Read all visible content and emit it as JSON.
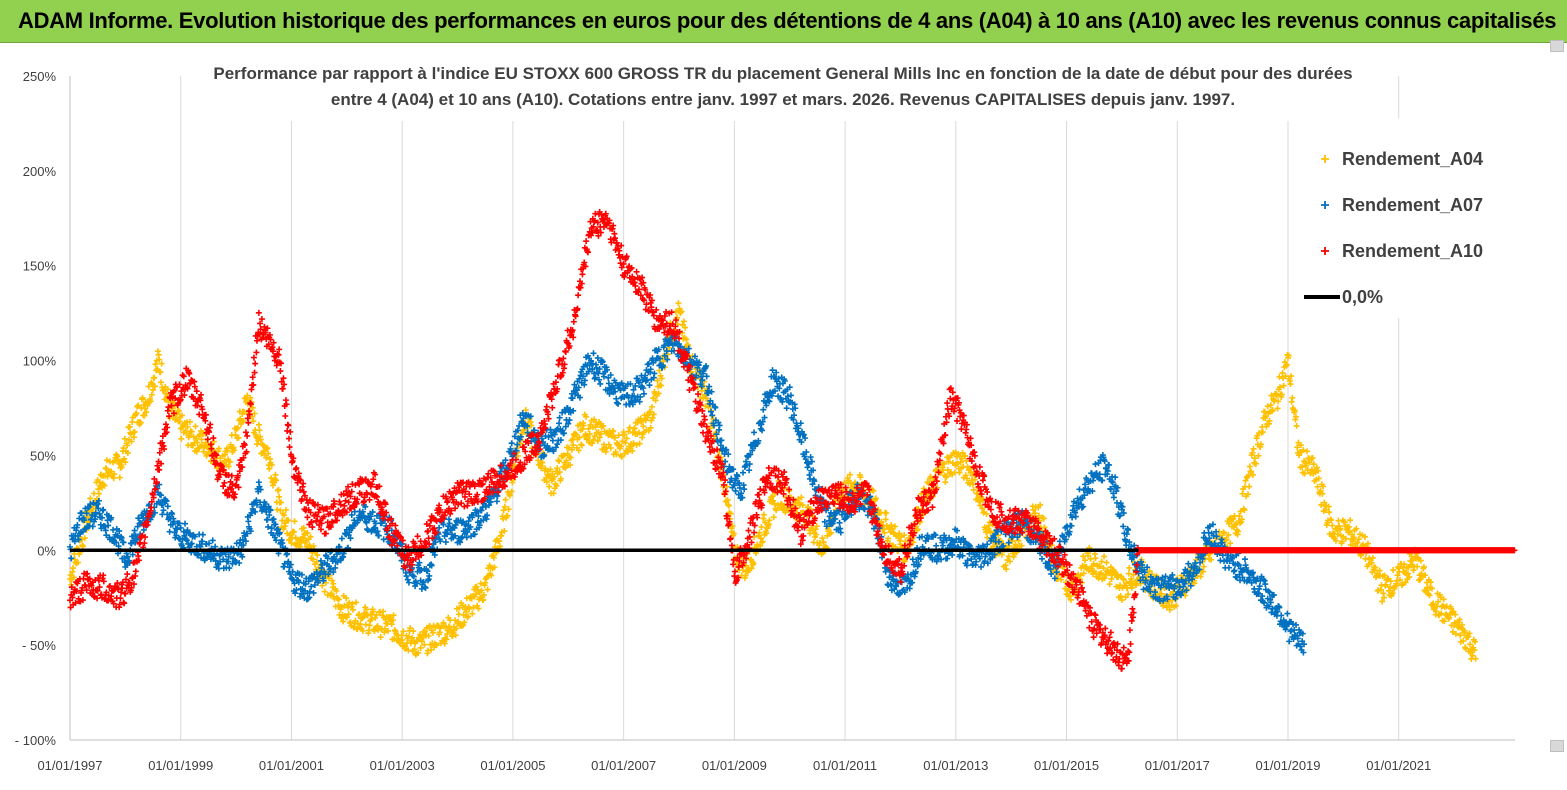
{
  "banner": {
    "title": "ADAM Informe. Evolution historique des performances en euros pour des détentions de 4 ans (A04) à 10 ans (A10) avec les revenus connus capitalisés",
    "background_color": "#92d050"
  },
  "chart_data": {
    "type": "scatter",
    "title_lines": [
      "Performance par rapport à l'indice EU STOXX 600 GROSS TR  du placement General Mills Inc en fonction de la date de début pour des durées",
      "entre 4 (A04) et 10 ans (A10). Cotations entre janv. 1997 et mars. 2026. Revenus CAPITALISES depuis janv. 1997."
    ],
    "xlabel": "",
    "ylabel": "",
    "y_ticks": [
      "250%",
      "200%",
      "150%",
      "100%",
      "50%",
      "0%",
      "- 50%",
      "- 100%"
    ],
    "y_tick_values": [
      250,
      200,
      150,
      100,
      50,
      0,
      -50,
      -100
    ],
    "ylim": [
      -100,
      250
    ],
    "x_ticks": [
      "01/01/1997",
      "01/01/1999",
      "01/01/2001",
      "01/01/2003",
      "01/01/2005",
      "01/01/2007",
      "01/01/2009",
      "01/01/2011",
      "01/01/2013",
      "01/01/2015",
      "01/01/2017",
      "01/01/2019",
      "01/01/2021"
    ],
    "x_tick_years": [
      1997,
      1999,
      2001,
      2003,
      2005,
      2007,
      2009,
      2011,
      2013,
      2015,
      2017,
      2019,
      2021
    ],
    "xlim": [
      1997.0,
      2023.1
    ],
    "grid": "vertical",
    "legend_position": "top-right",
    "series": [
      {
        "name": "Rendement_A04",
        "color": "#ffc000",
        "marker": "plus",
        "points": [
          [
            1997.0,
            -15
          ],
          [
            1997.3,
            15
          ],
          [
            1997.6,
            40
          ],
          [
            1997.9,
            45
          ],
          [
            1998.2,
            70
          ],
          [
            1998.4,
            80
          ],
          [
            1998.6,
            100
          ],
          [
            1998.8,
            75
          ],
          [
            1999.0,
            65
          ],
          [
            1999.2,
            60
          ],
          [
            1999.5,
            55
          ],
          [
            1999.8,
            45
          ],
          [
            2000.0,
            60
          ],
          [
            2000.2,
            80
          ],
          [
            2000.4,
            60
          ],
          [
            2000.6,
            50
          ],
          [
            2000.8,
            20
          ],
          [
            2001.0,
            10
          ],
          [
            2001.3,
            5
          ],
          [
            2001.6,
            -15
          ],
          [
            2001.9,
            -30
          ],
          [
            2002.2,
            -35
          ],
          [
            2002.5,
            -38
          ],
          [
            2002.8,
            -40
          ],
          [
            2003.0,
            -45
          ],
          [
            2003.3,
            -50
          ],
          [
            2003.6,
            -45
          ],
          [
            2003.9,
            -40
          ],
          [
            2004.2,
            -30
          ],
          [
            2004.5,
            -20
          ],
          [
            2004.8,
            10
          ],
          [
            2005.0,
            40
          ],
          [
            2005.2,
            70
          ],
          [
            2005.4,
            55
          ],
          [
            2005.7,
            35
          ],
          [
            2006.0,
            50
          ],
          [
            2006.3,
            65
          ],
          [
            2006.6,
            60
          ],
          [
            2006.9,
            55
          ],
          [
            2007.2,
            60
          ],
          [
            2007.5,
            70
          ],
          [
            2007.8,
            110
          ],
          [
            2008.0,
            125
          ],
          [
            2008.2,
            100
          ],
          [
            2008.5,
            80
          ],
          [
            2008.8,
            40
          ],
          [
            2009.0,
            0
          ],
          [
            2009.2,
            -10
          ],
          [
            2009.5,
            10
          ],
          [
            2009.8,
            30
          ],
          [
            2010.0,
            25
          ],
          [
            2010.3,
            20
          ],
          [
            2010.6,
            0
          ],
          [
            2010.9,
            30
          ],
          [
            2011.2,
            35
          ],
          [
            2011.5,
            25
          ],
          [
            2011.8,
            10
          ],
          [
            2012.1,
            0
          ],
          [
            2012.4,
            25
          ],
          [
            2012.7,
            40
          ],
          [
            2013.0,
            48
          ],
          [
            2013.3,
            40
          ],
          [
            2013.6,
            10
          ],
          [
            2013.9,
            -5
          ],
          [
            2014.2,
            10
          ],
          [
            2014.5,
            20
          ],
          [
            2014.8,
            -10
          ],
          [
            2015.1,
            -20
          ],
          [
            2015.4,
            -5
          ],
          [
            2015.7,
            -10
          ],
          [
            2016.0,
            -20
          ],
          [
            2016.3,
            -10
          ],
          [
            2016.6,
            -20
          ],
          [
            2016.9,
            -25
          ],
          [
            2017.2,
            -15
          ],
          [
            2017.5,
            -5
          ],
          [
            2017.8,
            5
          ],
          [
            2018.1,
            15
          ],
          [
            2018.4,
            50
          ],
          [
            2018.6,
            70
          ],
          [
            2018.8,
            80
          ],
          [
            2019.0,
            100
          ],
          [
            2019.2,
            50
          ],
          [
            2019.5,
            40
          ],
          [
            2019.8,
            10
          ],
          [
            2020.1,
            10
          ],
          [
            2020.4,
            0
          ],
          [
            2020.7,
            -20
          ],
          [
            2021.0,
            -15
          ],
          [
            2021.3,
            -5
          ],
          [
            2021.6,
            -25
          ],
          [
            2021.9,
            -35
          ],
          [
            2022.2,
            -45
          ],
          [
            2022.4,
            -55
          ]
        ]
      },
      {
        "name": "Rendement_A07",
        "color": "#0070c0",
        "marker": "plus",
        "points": [
          [
            1997.0,
            0
          ],
          [
            1997.2,
            15
          ],
          [
            1997.5,
            20
          ],
          [
            1997.8,
            10
          ],
          [
            1998.0,
            -5
          ],
          [
            1998.3,
            15
          ],
          [
            1998.6,
            30
          ],
          [
            1998.9,
            10
          ],
          [
            1999.2,
            5
          ],
          [
            1999.5,
            0
          ],
          [
            1999.8,
            -5
          ],
          [
            2000.1,
            0
          ],
          [
            2000.4,
            30
          ],
          [
            2000.7,
            10
          ],
          [
            2001.0,
            -15
          ],
          [
            2001.3,
            -20
          ],
          [
            2001.6,
            -10
          ],
          [
            2001.9,
            0
          ],
          [
            2002.2,
            20
          ],
          [
            2002.5,
            15
          ],
          [
            2002.8,
            10
          ],
          [
            2003.1,
            -10
          ],
          [
            2003.4,
            -15
          ],
          [
            2003.7,
            10
          ],
          [
            2004.0,
            10
          ],
          [
            2004.3,
            15
          ],
          [
            2004.6,
            25
          ],
          [
            2004.9,
            45
          ],
          [
            2005.2,
            70
          ],
          [
            2005.5,
            55
          ],
          [
            2005.8,
            60
          ],
          [
            2006.1,
            80
          ],
          [
            2006.4,
            100
          ],
          [
            2006.7,
            90
          ],
          [
            2007.0,
            80
          ],
          [
            2007.3,
            85
          ],
          [
            2007.6,
            100
          ],
          [
            2007.9,
            110
          ],
          [
            2008.2,
            100
          ],
          [
            2008.5,
            90
          ],
          [
            2008.8,
            50
          ],
          [
            2009.1,
            30
          ],
          [
            2009.4,
            60
          ],
          [
            2009.7,
            90
          ],
          [
            2010.0,
            80
          ],
          [
            2010.3,
            50
          ],
          [
            2010.6,
            20
          ],
          [
            2010.9,
            15
          ],
          [
            2011.2,
            30
          ],
          [
            2011.5,
            20
          ],
          [
            2011.8,
            -15
          ],
          [
            2012.1,
            -20
          ],
          [
            2012.4,
            5
          ],
          [
            2012.7,
            0
          ],
          [
            2013.0,
            5
          ],
          [
            2013.3,
            -5
          ],
          [
            2013.6,
            0
          ],
          [
            2013.9,
            10
          ],
          [
            2014.2,
            15
          ],
          [
            2014.5,
            5
          ],
          [
            2014.8,
            -10
          ],
          [
            2015.1,
            20
          ],
          [
            2015.4,
            35
          ],
          [
            2015.7,
            45
          ],
          [
            2015.9,
            30
          ],
          [
            2016.1,
            5
          ],
          [
            2016.4,
            -15
          ],
          [
            2016.7,
            -20
          ],
          [
            2017.0,
            -20
          ],
          [
            2017.3,
            -10
          ],
          [
            2017.6,
            10
          ],
          [
            2017.9,
            -5
          ],
          [
            2018.2,
            -10
          ],
          [
            2018.5,
            -20
          ],
          [
            2018.8,
            -30
          ],
          [
            2019.1,
            -45
          ],
          [
            2019.3,
            -50
          ]
        ]
      },
      {
        "name": "Rendement_A10",
        "color": "#ff0000",
        "marker": "plus",
        "points": [
          [
            1997.0,
            -25
          ],
          [
            1997.3,
            -18
          ],
          [
            1997.6,
            -20
          ],
          [
            1997.9,
            -25
          ],
          [
            1998.2,
            -10
          ],
          [
            1998.5,
            30
          ],
          [
            1998.8,
            75
          ],
          [
            1999.1,
            90
          ],
          [
            1999.4,
            75
          ],
          [
            1999.7,
            40
          ],
          [
            2000.0,
            30
          ],
          [
            2000.2,
            60
          ],
          [
            2000.4,
            120
          ],
          [
            2000.6,
            110
          ],
          [
            2000.8,
            100
          ],
          [
            2001.0,
            50
          ],
          [
            2001.3,
            20
          ],
          [
            2001.6,
            15
          ],
          [
            2001.9,
            25
          ],
          [
            2002.2,
            30
          ],
          [
            2002.5,
            35
          ],
          [
            2002.8,
            10
          ],
          [
            2003.1,
            -5
          ],
          [
            2003.4,
            5
          ],
          [
            2003.7,
            20
          ],
          [
            2004.0,
            30
          ],
          [
            2004.3,
            30
          ],
          [
            2004.6,
            35
          ],
          [
            2004.9,
            40
          ],
          [
            2005.2,
            50
          ],
          [
            2005.5,
            60
          ],
          [
            2005.8,
            90
          ],
          [
            2006.1,
            120
          ],
          [
            2006.4,
            170
          ],
          [
            2006.7,
            175
          ],
          [
            2007.0,
            150
          ],
          [
            2007.3,
            140
          ],
          [
            2007.6,
            120
          ],
          [
            2007.9,
            120
          ],
          [
            2008.2,
            90
          ],
          [
            2008.5,
            60
          ],
          [
            2008.8,
            40
          ],
          [
            2009.0,
            -15
          ],
          [
            2009.3,
            10
          ],
          [
            2009.6,
            40
          ],
          [
            2009.9,
            35
          ],
          [
            2010.2,
            10
          ],
          [
            2010.5,
            25
          ],
          [
            2010.8,
            30
          ],
          [
            2011.1,
            25
          ],
          [
            2011.4,
            30
          ],
          [
            2011.7,
            0
          ],
          [
            2012.0,
            -10
          ],
          [
            2012.3,
            20
          ],
          [
            2012.6,
            30
          ],
          [
            2012.9,
            80
          ],
          [
            2013.1,
            70
          ],
          [
            2013.4,
            40
          ],
          [
            2013.7,
            20
          ],
          [
            2014.0,
            15
          ],
          [
            2014.3,
            15
          ],
          [
            2014.6,
            5
          ],
          [
            2014.9,
            -5
          ],
          [
            2015.2,
            -20
          ],
          [
            2015.5,
            -40
          ],
          [
            2015.8,
            -50
          ],
          [
            2016.1,
            -60
          ],
          [
            2016.3,
            0
          ],
          [
            2023.1,
            0
          ]
        ]
      }
    ],
    "reference_line": {
      "name": "0,0%",
      "value": 0,
      "color": "#000000"
    }
  }
}
